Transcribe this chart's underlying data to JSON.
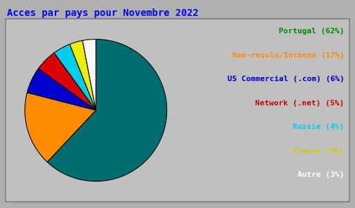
{
  "title": "Acces par pays pour Novembre 2022",
  "title_color": "#0000ff",
  "title_fontsize": 10,
  "background_color": "#b0b0b0",
  "inner_bg_color": "#c0c0c0",
  "labels": [
    "Portugal (62%)",
    "Non-resolu/Inconnu (17%)",
    "US Commercial (.com) (6%)",
    "Network (.net) (5%)",
    "Russie (4%)",
    "France (3%)",
    "Autre (3%)"
  ],
  "values": [
    62,
    17,
    6,
    5,
    4,
    3,
    3
  ],
  "slice_colors": [
    "#006e6e",
    "#ff8c00",
    "#0000cc",
    "#dd0000",
    "#00ccee",
    "#eeee00",
    "#f8f8f8"
  ],
  "legend_colors": [
    "#008800",
    "#ff8c00",
    "#0000cc",
    "#cc0000",
    "#00ccee",
    "#cccc00",
    "#ffffff"
  ],
  "font_family": "monospace",
  "legend_fontsize": 8,
  "start_angle": 90,
  "counterclock": false
}
